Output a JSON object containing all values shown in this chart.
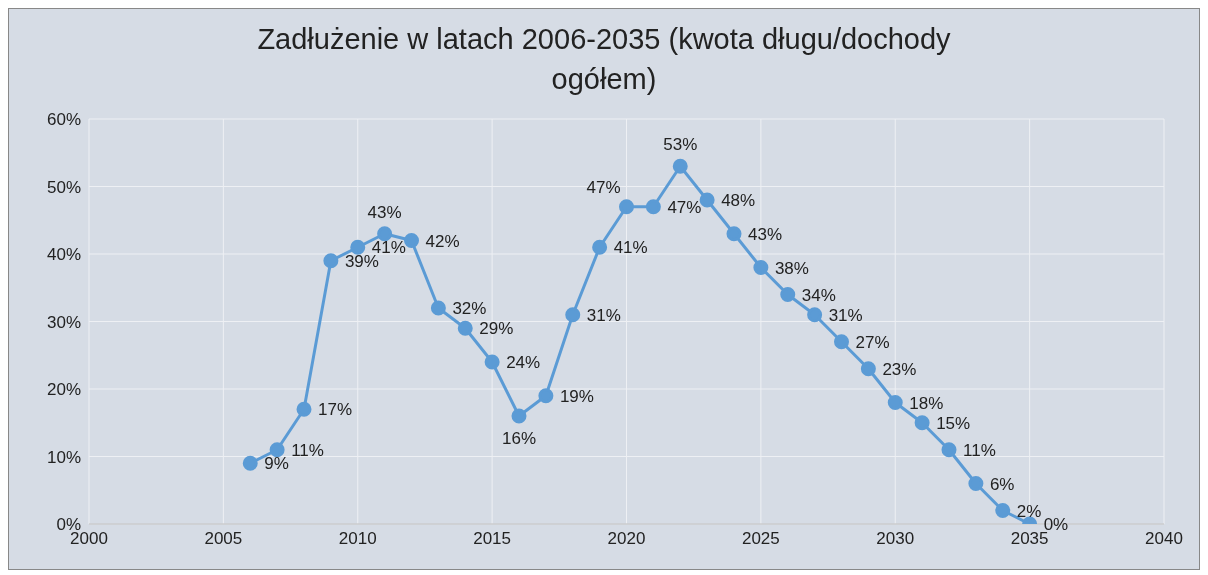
{
  "chart_data": {
    "type": "line",
    "title": "Zadłużenie w latach 2006-2035 (kwota długu/dochody ogółem)",
    "x": [
      2006,
      2007,
      2008,
      2009,
      2010,
      2011,
      2012,
      2013,
      2014,
      2015,
      2016,
      2017,
      2018,
      2019,
      2020,
      2021,
      2022,
      2023,
      2024,
      2025,
      2026,
      2027,
      2028,
      2029,
      2030,
      2031,
      2032,
      2033,
      2034,
      2035
    ],
    "series": [
      {
        "color": "#5b9bd5",
        "values": [
          9,
          11,
          17,
          39,
          41,
          43,
          42,
          32,
          29,
          24,
          16,
          19,
          31,
          41,
          47,
          47,
          53,
          48,
          43,
          38,
          34,
          31,
          27,
          23,
          18,
          15,
          11,
          6,
          2,
          0
        ],
        "value_labels": [
          "9%",
          "11%",
          "17%",
          "39%",
          "41%",
          "43%",
          "42%",
          "32%",
          "29%",
          "24%",
          "16%",
          "19%",
          "31%",
          "41%",
          "47%",
          "47%",
          "53%",
          "48%",
          "43%",
          "38%",
          "34%",
          "31%",
          "27%",
          "23%",
          "18%",
          "15%",
          "11%",
          "6%",
          "2%",
          "0%"
        ]
      }
    ],
    "xlim": [
      2000,
      2040
    ],
    "xticks": [
      2000,
      2005,
      2010,
      2015,
      2020,
      2025,
      2030,
      2035,
      2040
    ],
    "ylim": [
      0,
      60
    ],
    "yticks": [
      {
        "value": 0,
        "label": "0%"
      },
      {
        "value": 10,
        "label": "10%"
      },
      {
        "value": 20,
        "label": "20%"
      },
      {
        "value": 30,
        "label": "30%"
      },
      {
        "value": 40,
        "label": "40%"
      },
      {
        "value": 50,
        "label": "50%"
      },
      {
        "value": 60,
        "label": "60%"
      }
    ],
    "grid": true,
    "marker": "circle",
    "line_style": "solid"
  }
}
